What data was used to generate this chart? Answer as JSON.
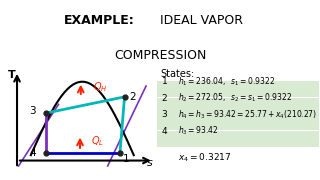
{
  "bg_color": "#ffffff",
  "title_bold": "EXAMPLE:",
  "title_normal": "IDEAL VAPOR",
  "title_normal2": "COMPRESSION",
  "states_label": "States:",
  "state_nums": [
    "1",
    "2",
    "3",
    "4"
  ],
  "state_texts": [
    "$h_1 = 236.04,\\;\\; s_1 = 0.9322$",
    "$h_2 = 272.05,\\;\\; s_2 = s_1 = 0.9322$",
    "$h_4 = h_3 = 93.42 = 25.77 + x_4(210.27)$",
    "$h_3 = 93.42$"
  ],
  "x4_text": "$x_4 = 0.3217$",
  "highlight_color": "#d9ead3",
  "dome_color": "#000000",
  "cyan_color": "#00b8b8",
  "purple_color": "#7b2fbe",
  "blue_color": "#0000cc",
  "arrow_color": "#ff2200",
  "point_color": "#222222",
  "p1": [
    0.76,
    0.2
  ],
  "p2": [
    0.79,
    0.72
  ],
  "p3": [
    0.28,
    0.57
  ],
  "p4": [
    0.28,
    0.2
  ]
}
